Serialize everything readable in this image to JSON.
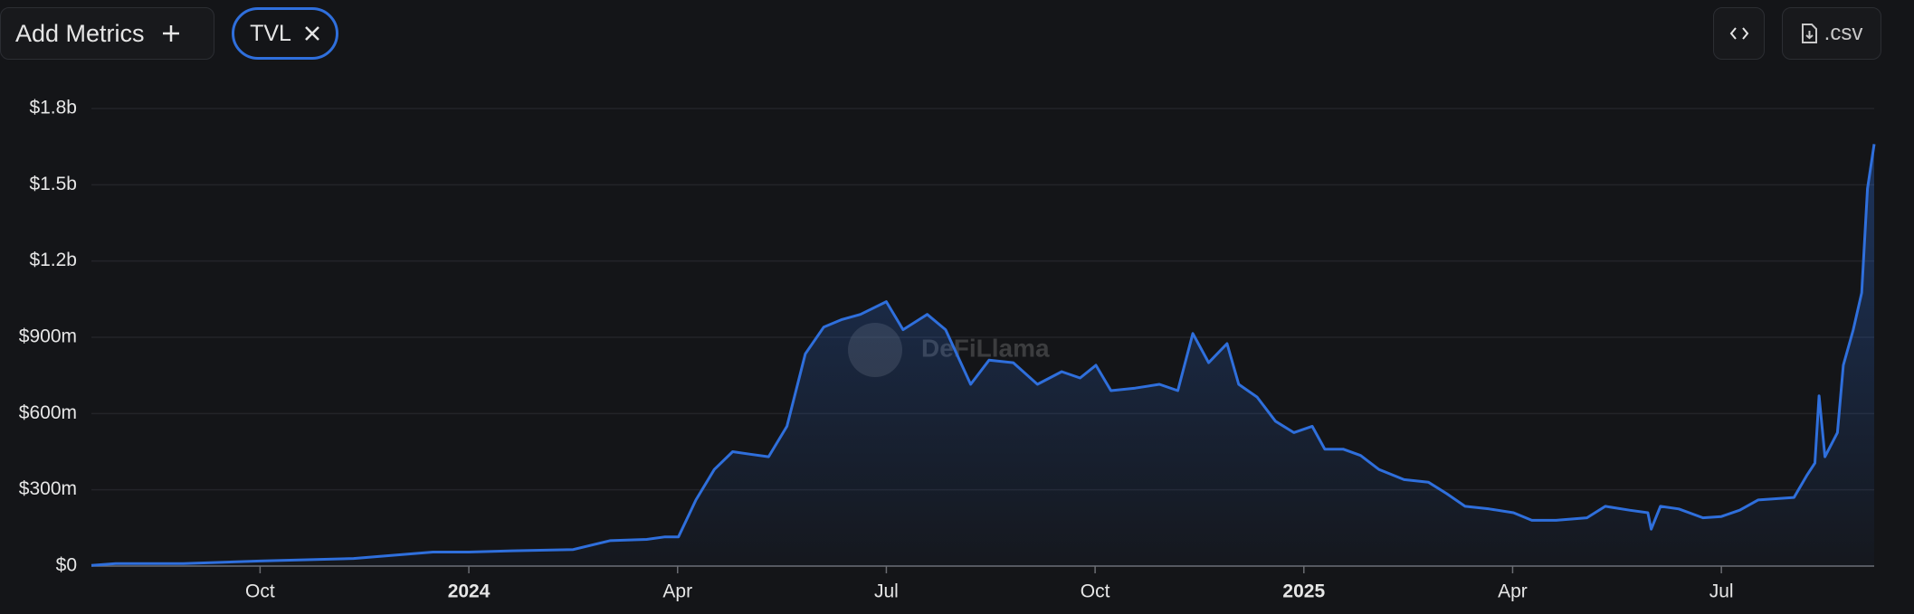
{
  "toolbar": {
    "add_metrics": "Add Metrics",
    "metric_chip": "TVL",
    "csv_button": ".csv"
  },
  "chart_data": {
    "type": "line",
    "watermark": "DeFiLlama",
    "color": "#2f6fdc",
    "grid": true,
    "x": [
      2023.548,
      2023.577,
      2023.658,
      2023.75,
      2023.862,
      2023.957,
      2024.0,
      2024.052,
      2024.125,
      2024.169,
      2024.213,
      2024.235,
      2024.251,
      2024.272,
      2024.294,
      2024.316,
      2024.337,
      2024.359,
      2024.381,
      2024.403,
      2024.425,
      2024.447,
      2024.469,
      2024.5,
      2024.52,
      2024.549,
      2024.571,
      2024.601,
      2024.623,
      2024.652,
      2024.681,
      2024.71,
      2024.732,
      2024.751,
      2024.769,
      2024.798,
      2024.827,
      2024.849,
      2024.867,
      2024.886,
      2024.908,
      2024.922,
      2024.944,
      2024.966,
      2024.988,
      2025.01,
      2025.025,
      2025.047,
      2025.068,
      2025.09,
      2025.12,
      2025.149,
      2025.171,
      2025.193,
      2025.222,
      2025.251,
      2025.273,
      2025.302,
      2025.339,
      2025.361,
      2025.39,
      2025.412,
      2025.416,
      2025.427,
      2025.449,
      2025.478,
      2025.5,
      2025.522,
      2025.544,
      2025.587,
      2025.602,
      2025.612,
      2025.617,
      2025.624,
      2025.639,
      2025.646,
      2025.658,
      2025.668,
      2025.675,
      2025.683
    ],
    "values": [
      3000000,
      10000000,
      10000000,
      20000000,
      30000000,
      55000000,
      55000000,
      60000000,
      65000000,
      100000000,
      105000000,
      115000000,
      115000000,
      260000000,
      380000000,
      450000000,
      440000000,
      430000000,
      550000000,
      835000000,
      940000000,
      970000000,
      990000000,
      1040000000,
      930000000,
      990000000,
      930000000,
      715000000,
      810000000,
      800000000,
      715000000,
      765000000,
      740000000,
      790000000,
      690000000,
      700000000,
      715000000,
      690000000,
      915000000,
      800000000,
      875000000,
      715000000,
      665000000,
      570000000,
      525000000,
      550000000,
      460000000,
      460000000,
      435000000,
      380000000,
      340000000,
      330000000,
      285000000,
      235000000,
      225000000,
      210000000,
      180000000,
      180000000,
      190000000,
      235000000,
      220000000,
      210000000,
      145000000,
      235000000,
      225000000,
      190000000,
      195000000,
      220000000,
      260000000,
      270000000,
      355000000,
      405000000,
      670000000,
      430000000,
      525000000,
      790000000,
      930000000,
      1075000000,
      1485000000,
      1660000000
    ],
    "xlim": [
      2023.548,
      2025.683
    ],
    "xticks": [
      {
        "value": 2023.75,
        "label": "Oct"
      },
      {
        "value": 2024,
        "label": "2024"
      },
      {
        "value": 2024.25,
        "label": "Apr"
      },
      {
        "value": 2024.5,
        "label": "Jul"
      },
      {
        "value": 2024.75,
        "label": "Oct"
      },
      {
        "value": 2025,
        "label": "2025"
      },
      {
        "value": 2025.25,
        "label": "Apr"
      },
      {
        "value": 2025.5,
        "label": "Jul"
      }
    ],
    "ylim": [
      0,
      1800000000
    ],
    "yticks": [
      {
        "value": 0,
        "label": "$0"
      },
      {
        "value": 300000000,
        "label": "$300m"
      },
      {
        "value": 600000000,
        "label": "$600m"
      },
      {
        "value": 900000000,
        "label": "$900m"
      },
      {
        "value": 1200000000,
        "label": "$1.2b"
      },
      {
        "value": 1500000000,
        "label": "$1.5b"
      },
      {
        "value": 1800000000,
        "label": "$1.8b"
      }
    ]
  }
}
